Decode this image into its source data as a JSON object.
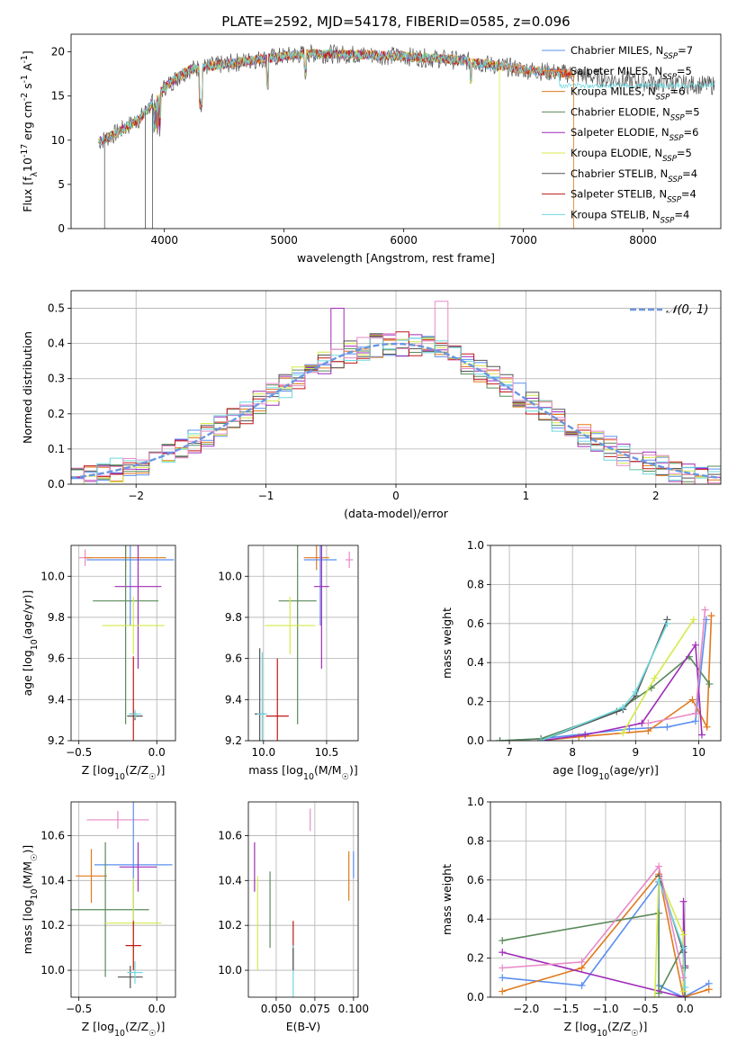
{
  "colors": {
    "chabrier_miles": "#5b8ff0",
    "salpeter_miles": "#f0862a",
    "kroupa_miles": "#e07a1c",
    "chabrier_elodie": "#5a8a5a",
    "salpeter_elodie": "#a02cb8",
    "kroupa_elodie": "#d4ea4a",
    "chabrier_stelib": "#555555",
    "salpeter_stelib": "#c01818",
    "kroupa_stelib": "#6fd8de",
    "pink": "#e88ac8",
    "normal": "#6a96e0"
  },
  "chart_data": [
    {
      "type": "line",
      "title": "PLATE=2592, MJD=54178, FIBERID=0585, z=0.096",
      "xlabel": "wavelength [Angstrom, rest frame]",
      "ylabel": "Flux [f_λ10^-17 erg cm^-2 s^-1 A^-1]",
      "xlim": [
        3220,
        8650
      ],
      "ylim": [
        0,
        22
      ],
      "xticks": [
        "4000",
        "5000",
        "6000",
        "7000",
        "8000"
      ],
      "yticks": [
        "0",
        "5",
        "10",
        "15",
        "20"
      ],
      "legend_position": "top-right",
      "legend": [
        "Chabrier MILES, N_SSP=7",
        "Salpeter MILES, N_SSP=5",
        "Kroupa MILES, N_SSP=6",
        "Chabrier ELODIE, N_SSP=5",
        "Salpeter ELODIE, N_SSP=6",
        "Kroupa ELODIE, N_SSP=5",
        "Chabrier STELIB, N_SSP=4",
        "Salpeter STELIB, N_SSP=4",
        "Kroupa STELIB, N_SSP=4"
      ],
      "continuum": {
        "x": [
          3450,
          3600,
          3800,
          4000,
          4200,
          4500,
          4800,
          5200,
          5600,
          6000,
          6500,
          7000,
          7400,
          7800,
          8200,
          8600
        ],
        "y": [
          9.8,
          10.8,
          12.5,
          16.0,
          18.0,
          18.6,
          19.2,
          19.8,
          19.7,
          19.5,
          19.0,
          18.0,
          17.5,
          16.8,
          16.4,
          16.2
        ]
      },
      "dips": [
        {
          "x": 3500,
          "y": 0
        },
        {
          "x": 3840,
          "y": 0
        },
        {
          "x": 3900,
          "y": 0
        },
        {
          "x": 6800,
          "y": 0
        },
        {
          "x": 7420,
          "y": 0
        }
      ]
    },
    {
      "type": "bar",
      "xlabel": "(data-model)/error",
      "ylabel": "Normed distribution",
      "xlim": [
        -2.5,
        2.5
      ],
      "ylim": [
        0,
        0.55
      ],
      "xticks": [
        "−2",
        "−1",
        "0",
        "1",
        "2"
      ],
      "yticks": [
        "0.0",
        "0.1",
        "0.2",
        "0.3",
        "0.4",
        "0.5"
      ],
      "legend_position": "top-right",
      "legend": [
        "𝒩(0, 1)"
      ],
      "bin_width": 0.1
    },
    {
      "type": "scatter",
      "xlabel": "Z [log10(Z/Z☉)]",
      "ylabel": "age  [log10(age/yr)]",
      "xlim": [
        -0.55,
        0.12
      ],
      "ylim": [
        9.2,
        10.15
      ],
      "xticks": [
        "−0.5",
        "0.0"
      ],
      "yticks": [
        "9.2",
        "9.4",
        "9.6",
        "9.8",
        "10.0"
      ],
      "points": [
        {
          "c": "pink",
          "x": -0.46,
          "y": 10.09,
          "dx": 0.04,
          "dy": 0.04
        },
        {
          "c": "kroupa_miles",
          "x": -0.2,
          "y": 10.09,
          "dx": 0.26,
          "dy": 0.06
        },
        {
          "c": "chabrier_miles",
          "x": -0.17,
          "y": 10.08,
          "dx": 0.28,
          "dy": 0.32
        },
        {
          "c": "salpeter_elodie",
          "x": -0.12,
          "y": 9.95,
          "dx": 0.15,
          "dy": 0.4
        },
        {
          "c": "chabrier_elodie",
          "x": -0.2,
          "y": 9.88,
          "dx": 0.21,
          "dy": 0.6
        },
        {
          "c": "kroupa_elodie",
          "x": -0.15,
          "y": 9.76,
          "dx": 0.2,
          "dy": 0.14
        },
        {
          "c": "salpeter_stelib",
          "x": -0.15,
          "y": 9.33,
          "dx": 0.02,
          "dy": 0.28
        },
        {
          "c": "chabrier_stelib",
          "x": -0.14,
          "y": 9.32,
          "dx": 0.05,
          "dy": 0.02
        },
        {
          "c": "kroupa_stelib",
          "x": -0.14,
          "y": 9.33,
          "dx": 0.04,
          "dy": 0.02
        }
      ]
    },
    {
      "type": "scatter",
      "xlabel": "mass [log10(M/M☉)]",
      "ylabel": "",
      "xlim": [
        9.88,
        10.75
      ],
      "ylim": [
        9.2,
        10.15
      ],
      "xticks": [
        "10.0",
        "10.5"
      ],
      "yticks": [
        "9.2",
        "9.4",
        "9.6",
        "9.8",
        "10.0"
      ],
      "points": [
        {
          "c": "pink",
          "x": 10.68,
          "y": 10.08,
          "dx": 0.03,
          "dy": 0.04
        },
        {
          "c": "kroupa_miles",
          "x": 10.42,
          "y": 10.09,
          "dx": 0.1,
          "dy": 0.06
        },
        {
          "c": "chabrier_miles",
          "x": 10.45,
          "y": 10.08,
          "dx": 0.13,
          "dy": 0.32
        },
        {
          "c": "salpeter_elodie",
          "x": 10.46,
          "y": 9.95,
          "dx": 0.06,
          "dy": 0.4
        },
        {
          "c": "chabrier_elodie",
          "x": 10.27,
          "y": 9.88,
          "dx": 0.15,
          "dy": 0.6
        },
        {
          "c": "kroupa_elodie",
          "x": 10.21,
          "y": 9.76,
          "dx": 0.2,
          "dy": 0.14
        },
        {
          "c": "salpeter_stelib",
          "x": 10.11,
          "y": 9.32,
          "dx": 0.09,
          "dy": 0.28
        },
        {
          "c": "chabrier_stelib",
          "x": 9.97,
          "y": 9.33,
          "dx": 0.04,
          "dy": 0.32
        },
        {
          "c": "kroupa_stelib",
          "x": 9.99,
          "y": 9.33,
          "dx": 0.04,
          "dy": 0.3
        }
      ]
    },
    {
      "type": "line",
      "xlabel": "age  [log10(age/yr)]",
      "ylabel": "mass weight",
      "xlim": [
        6.7,
        10.35
      ],
      "ylim": [
        0,
        1.0
      ],
      "xticks": [
        "7",
        "8",
        "9",
        "10"
      ],
      "yticks": [
        "0.0",
        "0.2",
        "0.4",
        "0.6",
        "0.8",
        "1.0"
      ],
      "series": [
        {
          "c": "chabrier_miles",
          "x": [
            6.85,
            7.5,
            8.9,
            9.5,
            9.95,
            10.12
          ],
          "y": [
            0.0,
            0.01,
            0.06,
            0.07,
            0.1,
            0.62
          ]
        },
        {
          "c": "kroupa_miles",
          "x": [
            7.5,
            8.1,
            9.2,
            9.9,
            10.13,
            10.2
          ],
          "y": [
            0.0,
            0.02,
            0.05,
            0.21,
            0.07,
            0.64
          ]
        },
        {
          "c": "chabrier_elodie",
          "x": [
            6.85,
            7.5,
            8.7,
            9.25,
            9.85,
            10.17
          ],
          "y": [
            0.0,
            0.01,
            0.15,
            0.27,
            0.43,
            0.29
          ]
        },
        {
          "c": "salpeter_elodie",
          "x": [
            7.5,
            8.2,
            9.1,
            9.95,
            10.05
          ],
          "y": [
            0.0,
            0.03,
            0.09,
            0.49,
            0.03
          ]
        },
        {
          "c": "kroupa_elodie",
          "x": [
            8.8,
            9.3,
            9.92
          ],
          "y": [
            0.04,
            0.32,
            0.62
          ]
        },
        {
          "c": "chabrier_stelib",
          "x": [
            7.5,
            8.8,
            9.0,
            9.5
          ],
          "y": [
            0.0,
            0.16,
            0.23,
            0.62
          ]
        },
        {
          "c": "kroupa_stelib",
          "x": [
            7.5,
            8.8,
            9.0,
            9.5
          ],
          "y": [
            0.0,
            0.17,
            0.25,
            0.6
          ]
        },
        {
          "c": "pink",
          "x": [
            9.2,
            9.95,
            10.1
          ],
          "y": [
            0.09,
            0.14,
            0.67
          ]
        }
      ]
    },
    {
      "type": "scatter",
      "xlabel": "Z [log10(Z/Z☉)]",
      "ylabel": "mass [log10(M/M☉)]",
      "xlim": [
        -0.55,
        0.12
      ],
      "ylim": [
        9.88,
        10.75
      ],
      "xticks": [
        "−0.5",
        "0.0"
      ],
      "yticks": [
        "10.0",
        "10.2",
        "10.4",
        "10.6"
      ],
      "points": [
        {
          "c": "pink",
          "x": -0.25,
          "y": 10.67,
          "dx": 0.2,
          "dy": 0.04
        },
        {
          "c": "chabrier_miles",
          "x": -0.15,
          "y": 10.47,
          "dx": 0.25,
          "dy": 0.3
        },
        {
          "c": "salpeter_elodie",
          "x": -0.12,
          "y": 10.46,
          "dx": 0.12,
          "dy": 0.11
        },
        {
          "c": "kroupa_miles",
          "x": -0.42,
          "y": 10.42,
          "dx": 0.1,
          "dy": 0.12
        },
        {
          "c": "chabrier_elodie",
          "x": -0.33,
          "y": 10.27,
          "dx": 0.28,
          "dy": 0.3
        },
        {
          "c": "kroupa_elodie",
          "x": -0.15,
          "y": 10.21,
          "dx": 0.18,
          "dy": 0.2
        },
        {
          "c": "salpeter_stelib",
          "x": -0.15,
          "y": 10.11,
          "dx": 0.05,
          "dy": 0.11
        },
        {
          "c": "chabrier_stelib",
          "x": -0.17,
          "y": 9.97,
          "dx": 0.08,
          "dy": 0.05
        },
        {
          "c": "kroupa_stelib",
          "x": -0.14,
          "y": 9.99,
          "dx": 0.05,
          "dy": 0.05
        }
      ]
    },
    {
      "type": "scatter",
      "xlabel": "E(B-V)",
      "ylabel": "",
      "xlim": [
        0.032,
        0.103
      ],
      "ylim": [
        9.88,
        10.75
      ],
      "xticks": [
        "0.050",
        "0.075",
        "0.100"
      ],
      "yticks": [
        "10.0",
        "10.2",
        "10.4",
        "10.6"
      ],
      "points": [
        {
          "c": "pink",
          "x": 0.072,
          "y": 10.67,
          "dx": 0,
          "dy": 0.05
        },
        {
          "c": "salpeter_elodie",
          "x": 0.036,
          "y": 10.46,
          "dx": 0,
          "dy": 0.11
        },
        {
          "c": "chabrier_miles",
          "x": 0.1,
          "y": 10.47,
          "dx": 0,
          "dy": 0.06
        },
        {
          "c": "kroupa_miles",
          "x": 0.097,
          "y": 10.42,
          "dx": 0,
          "dy": 0.11
        },
        {
          "c": "chabrier_elodie",
          "x": 0.046,
          "y": 10.27,
          "dx": 0,
          "dy": 0.17
        },
        {
          "c": "kroupa_elodie",
          "x": 0.038,
          "y": 10.21,
          "dx": 0,
          "dy": 0.21
        },
        {
          "c": "salpeter_stelib",
          "x": 0.061,
          "y": 10.11,
          "dx": 0,
          "dy": 0.11
        },
        {
          "c": "kroupa_stelib",
          "x": 0.061,
          "y": 9.99,
          "dx": 0,
          "dy": 0.12
        },
        {
          "c": "chabrier_stelib",
          "x": 0.061,
          "y": 10.05,
          "dx": 0,
          "dy": 0.05
        }
      ]
    },
    {
      "type": "line",
      "xlabel": "Z [log10(Z/Z☉)]",
      "ylabel": "mass weight",
      "xlim": [
        -2.45,
        0.45
      ],
      "ylim": [
        0,
        1.0
      ],
      "xticks": [
        "−2.0",
        "−1.5",
        "−1.0",
        "−0.5",
        "0.0"
      ],
      "yticks": [
        "0.0",
        "0.2",
        "0.4",
        "0.6",
        "0.8",
        "1.0"
      ],
      "series": [
        {
          "c": "chabrier_miles",
          "x": [
            -2.3,
            -1.3,
            -0.33,
            -0.33,
            -0.02,
            0.3
          ],
          "y": [
            0.1,
            0.06,
            0.59,
            0.06,
            0.0,
            0.07
          ]
        },
        {
          "c": "kroupa_miles",
          "x": [
            -2.3,
            -1.3,
            -0.33,
            -0.02,
            0.3
          ],
          "y": [
            0.03,
            0.15,
            0.63,
            0.0,
            0.04
          ]
        },
        {
          "c": "chabrier_elodie",
          "x": [
            -2.3,
            -0.33,
            -0.33,
            -0.02,
            0.0
          ],
          "y": [
            0.29,
            0.43,
            0.02,
            0.26,
            0.0
          ]
        },
        {
          "c": "salpeter_elodie",
          "x": [
            -2.3,
            -0.02,
            -0.02,
            0.0
          ],
          "y": [
            0.23,
            0.0,
            0.49,
            0.16
          ]
        },
        {
          "c": "kroupa_elodie",
          "x": [
            -0.38,
            -0.33,
            -0.02,
            -0.02
          ],
          "y": [
            0.0,
            0.62,
            0.32,
            0.03
          ]
        },
        {
          "c": "chabrier_stelib",
          "x": [
            -0.33,
            -0.02,
            0.0
          ],
          "y": [
            0.62,
            0.23,
            0.15
          ]
        },
        {
          "c": "kroupa_stelib",
          "x": [
            -0.33,
            -0.02,
            0.0
          ],
          "y": [
            0.6,
            0.25,
            0.05
          ]
        },
        {
          "c": "pink",
          "x": [
            -2.3,
            -1.3,
            -0.33,
            -0.02
          ],
          "y": [
            0.15,
            0.18,
            0.67,
            0.1
          ]
        }
      ]
    }
  ]
}
